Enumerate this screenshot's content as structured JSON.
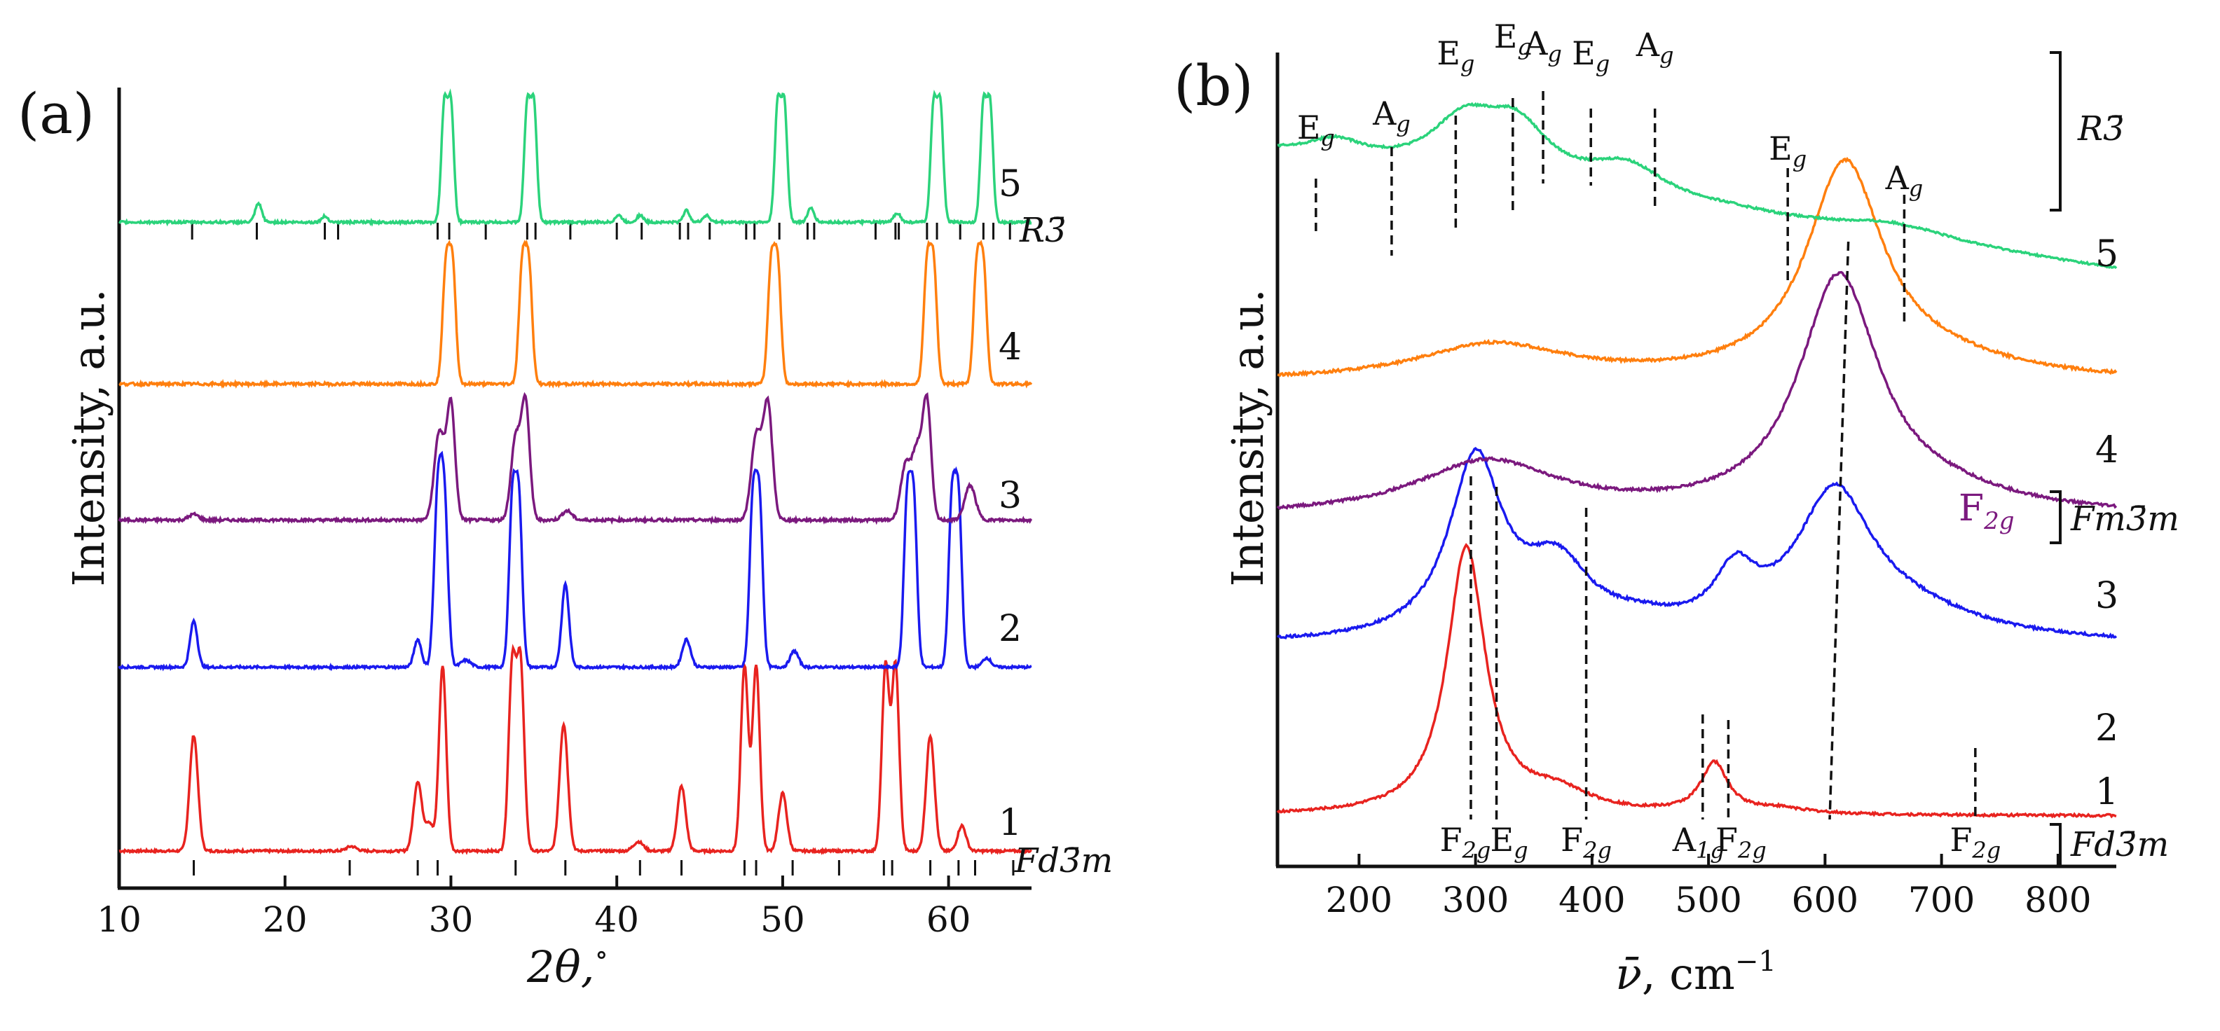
{
  "chart_data": [
    {
      "panel": "(a)",
      "type": "line",
      "xlabel": "2θ,°",
      "ylabel": "Intensity, a.u.",
      "xlim": [
        10,
        65
      ],
      "xticks": [
        "10",
        "20",
        "30",
        "40",
        "50",
        "60"
      ],
      "xtick_values": [
        10,
        20,
        30,
        40,
        50,
        60
      ],
      "series": [
        {
          "name": "1",
          "color": "#e8231f",
          "offset": 0,
          "noise": 0.05,
          "peaks": [
            [
              14.5,
              5.0,
              0.25
            ],
            [
              24.0,
              0.2,
              0.3
            ],
            [
              28.0,
              3.0,
              0.25
            ],
            [
              28.7,
              1.2,
              0.25
            ],
            [
              29.5,
              8.0,
              0.22
            ],
            [
              33.7,
              8.0,
              0.22
            ],
            [
              34.2,
              8.0,
              0.22
            ],
            [
              36.8,
              5.5,
              0.25
            ],
            [
              41.3,
              0.4,
              0.3
            ],
            [
              43.9,
              2.8,
              0.25
            ],
            [
              47.7,
              8.0,
              0.22
            ],
            [
              48.4,
              8.0,
              0.22
            ],
            [
              50.0,
              2.5,
              0.25
            ],
            [
              56.2,
              8.0,
              0.22
            ],
            [
              56.8,
              8.0,
              0.22
            ],
            [
              58.9,
              5.0,
              0.25
            ],
            [
              60.8,
              1.1,
              0.25
            ]
          ]
        },
        {
          "name": "2",
          "color": "#1a1aef",
          "offset": 5.0,
          "noise": 0.05,
          "peaks": [
            [
              14.5,
              2.0,
              0.22
            ],
            [
              28.0,
              1.2,
              0.22
            ],
            [
              29.2,
              7.0,
              0.22
            ],
            [
              29.6,
              7.0,
              0.22
            ],
            [
              30.9,
              0.3,
              0.3
            ],
            [
              33.7,
              7.0,
              0.2
            ],
            [
              34.1,
              7.0,
              0.2
            ],
            [
              36.9,
              3.6,
              0.22
            ],
            [
              44.2,
              1.2,
              0.25
            ],
            [
              48.2,
              7.0,
              0.2
            ],
            [
              48.6,
              7.0,
              0.2
            ],
            [
              50.7,
              0.7,
              0.25
            ],
            [
              57.5,
              7.0,
              0.2
            ],
            [
              57.9,
              7.0,
              0.2
            ],
            [
              60.2,
              7.0,
              0.2
            ],
            [
              60.6,
              7.0,
              0.2
            ],
            [
              62.3,
              0.4,
              0.25
            ]
          ]
        },
        {
          "name": "3",
          "color": "#7b197e",
          "offset": 9.0,
          "noise": 0.06,
          "peaks": [
            [
              14.5,
              0.25,
              0.3
            ],
            [
              29.3,
              3.8,
              0.3
            ],
            [
              30.0,
              5.0,
              0.25
            ],
            [
              33.9,
              3.5,
              0.28
            ],
            [
              34.5,
              5.0,
              0.25
            ],
            [
              37.0,
              0.4,
              0.3
            ],
            [
              48.4,
              3.6,
              0.3
            ],
            [
              49.1,
              5.0,
              0.28
            ],
            [
              57.4,
              2.3,
              0.3
            ],
            [
              58.1,
              3.0,
              0.3
            ],
            [
              58.7,
              5.0,
              0.25
            ],
            [
              61.3,
              1.5,
              0.32
            ]
          ]
        },
        {
          "name": "4",
          "color": "#ff7f0e",
          "offset": 12.7,
          "noise": 0.06,
          "peaks": [
            [
              29.7,
              5.0,
              0.2
            ],
            [
              30.1,
              5.0,
              0.2
            ],
            [
              34.3,
              5.0,
              0.2
            ],
            [
              34.7,
              5.0,
              0.2
            ],
            [
              49.3,
              5.0,
              0.2
            ],
            [
              49.7,
              5.0,
              0.2
            ],
            [
              58.7,
              5.0,
              0.2
            ],
            [
              59.1,
              5.0,
              0.2
            ],
            [
              61.7,
              5.0,
              0.2
            ],
            [
              62.1,
              5.0,
              0.2
            ]
          ]
        },
        {
          "name": "5",
          "color": "#2bd37b",
          "offset": 17.1,
          "noise": 0.05,
          "peaks": [
            [
              18.4,
              0.8,
              0.2
            ],
            [
              22.4,
              0.25,
              0.2
            ],
            [
              29.6,
              5.0,
              0.18
            ],
            [
              30.0,
              5.0,
              0.18
            ],
            [
              34.6,
              5.0,
              0.18
            ],
            [
              35.0,
              5.0,
              0.18
            ],
            [
              40.1,
              0.3,
              0.2
            ],
            [
              41.4,
              0.3,
              0.2
            ],
            [
              44.2,
              0.5,
              0.2
            ],
            [
              45.4,
              0.3,
              0.2
            ],
            [
              49.7,
              5.0,
              0.18
            ],
            [
              50.1,
              5.0,
              0.18
            ],
            [
              51.7,
              0.6,
              0.2
            ],
            [
              56.9,
              0.4,
              0.2
            ],
            [
              59.1,
              5.0,
              0.18
            ],
            [
              59.5,
              5.0,
              0.18
            ],
            [
              62.1,
              5.0,
              0.18
            ],
            [
              62.5,
              5.0,
              0.18
            ]
          ]
        }
      ],
      "reference_patterns": [
        {
          "label": "Fd3̄m",
          "positions": [
            14.5,
            23.9,
            28.0,
            29.2,
            33.9,
            36.9,
            41.4,
            43.9,
            47.7,
            48.4,
            50.6,
            53.4,
            56.1,
            56.6,
            58.9,
            60.6,
            61.6,
            63.9
          ]
        },
        {
          "label": "R3̄",
          "positions": [
            14.4,
            18.3,
            22.4,
            23.2,
            29.2,
            29.9,
            32.1,
            34.6,
            35.1,
            37.2,
            40.0,
            41.5,
            43.8,
            44.3,
            45.6,
            47.8,
            48.3,
            49.8,
            51.5,
            51.9,
            55.6,
            56.8,
            57.0,
            58.7,
            59.3,
            60.7,
            62.1,
            62.7,
            63.7
          ]
        }
      ],
      "curve_labels": [
        "1",
        "2",
        "3",
        "4",
        "5"
      ],
      "legend": "none"
    },
    {
      "panel": "(b)",
      "type": "line",
      "xlabel": "ν̄, cm⁻¹",
      "ylabel": "Intensity, a.u.",
      "xlim": [
        130,
        850
      ],
      "xticks": [
        "200",
        "300",
        "400",
        "500",
        "600",
        "700",
        "800"
      ],
      "xtick_values": [
        200,
        300,
        400,
        500,
        600,
        700,
        800
      ],
      "series": [
        {
          "name": "1",
          "color": "#e8231f",
          "baseline": 0,
          "noise": 0.07,
          "peaks": [
            [
              292,
              7.5,
              20
            ],
            [
              370,
              0.55,
              35
            ],
            [
              505,
              1.4,
              14
            ],
            [
              560,
              0.15,
              30
            ]
          ]
        },
        {
          "name": "2",
          "color": "#1a1aef",
          "baseline": 4.8,
          "noise": 0.08,
          "peaks": [
            [
              300,
              5.0,
              28
            ],
            [
              370,
              1.9,
              35
            ],
            [
              440,
              0.3,
              40
            ],
            [
              523,
              1.5,
              22
            ],
            [
              608,
              3.9,
              40
            ],
            [
              670,
              0.7,
              80
            ]
          ]
        },
        {
          "name": "3",
          "color": "#7b197e",
          "baseline": 8.4,
          "noise": 0.08,
          "peaks": [
            [
              310,
              1.5,
              75
            ],
            [
              612,
              6.6,
              42
            ],
            [
              700,
              0.4,
              80
            ]
          ]
        },
        {
          "name": "4",
          "color": "#ff7f0e",
          "baseline": 12.2,
          "noise": 0.08,
          "peaks": [
            [
              315,
              1.0,
              80
            ],
            [
              617,
              6.0,
              40
            ],
            [
              700,
              0.4,
              80
            ]
          ]
        },
        {
          "name": "5",
          "color": "#2bd37b",
          "baseline": 18.6,
          "noise": 0.06,
          "slope": -0.0045,
          "peaks": [
            [
              180,
              0.5,
              30
            ],
            [
              290,
              1.4,
              35
            ],
            [
              335,
              1.5,
              35
            ],
            [
              430,
              0.9,
              40
            ],
            [
              520,
              0.1,
              50
            ],
            [
              660,
              0.4,
              60
            ]
          ]
        }
      ],
      "mode_labels_r3": [
        {
          "label": "Eg",
          "x": 163
        },
        {
          "label": "Ag",
          "x": 228
        },
        {
          "label": "Eg",
          "x": 283
        },
        {
          "label": "Eg",
          "x": 332
        },
        {
          "label": "Ag",
          "x": 358
        },
        {
          "label": "Eg",
          "x": 399
        },
        {
          "label": "Ag",
          "x": 454
        },
        {
          "label": "Eg",
          "x": 568
        },
        {
          "label": "Ag",
          "x": 668
        }
      ],
      "mode_labels_fd3m": [
        {
          "label": "F2g",
          "x": 296
        },
        {
          "label": "Eg",
          "x": 318
        },
        {
          "label": "F2g",
          "x": 395
        },
        {
          "label": "A1g",
          "x": 495
        },
        {
          "label": "F2g",
          "x": 517
        },
        {
          "label": "F2g",
          "x": 729
        }
      ],
      "mode_label_fm3m": {
        "label": "F2g",
        "x": 615
      },
      "phase_labels": {
        "r3": "R3̄",
        "fm3m": "Fm3̄m",
        "fd3m": "Fd3̄m"
      },
      "curve_labels": [
        "1",
        "2",
        "3",
        "4",
        "5"
      ],
      "legend": "none"
    }
  ],
  "text": {
    "panel_a": "(a)",
    "panel_b": "(b)",
    "a_xlabel_main": "2θ,",
    "a_xlabel_deg": "∘",
    "a_ylabel": "Intensity, a.u.",
    "b_xlabel_nu": "ν̄",
    "b_xlabel_unit": ", cm",
    "b_xlabel_exp": "−1",
    "b_ylabel": "Intensity, a.u.",
    "fd3m_a": "Fd3̄m",
    "r3_a": "R3̄",
    "r3_b": "R3̄",
    "fm3m_b": "Fm3̄m",
    "fd3m_b": "Fd3̄m",
    "fm3m_mode": "F2g"
  }
}
